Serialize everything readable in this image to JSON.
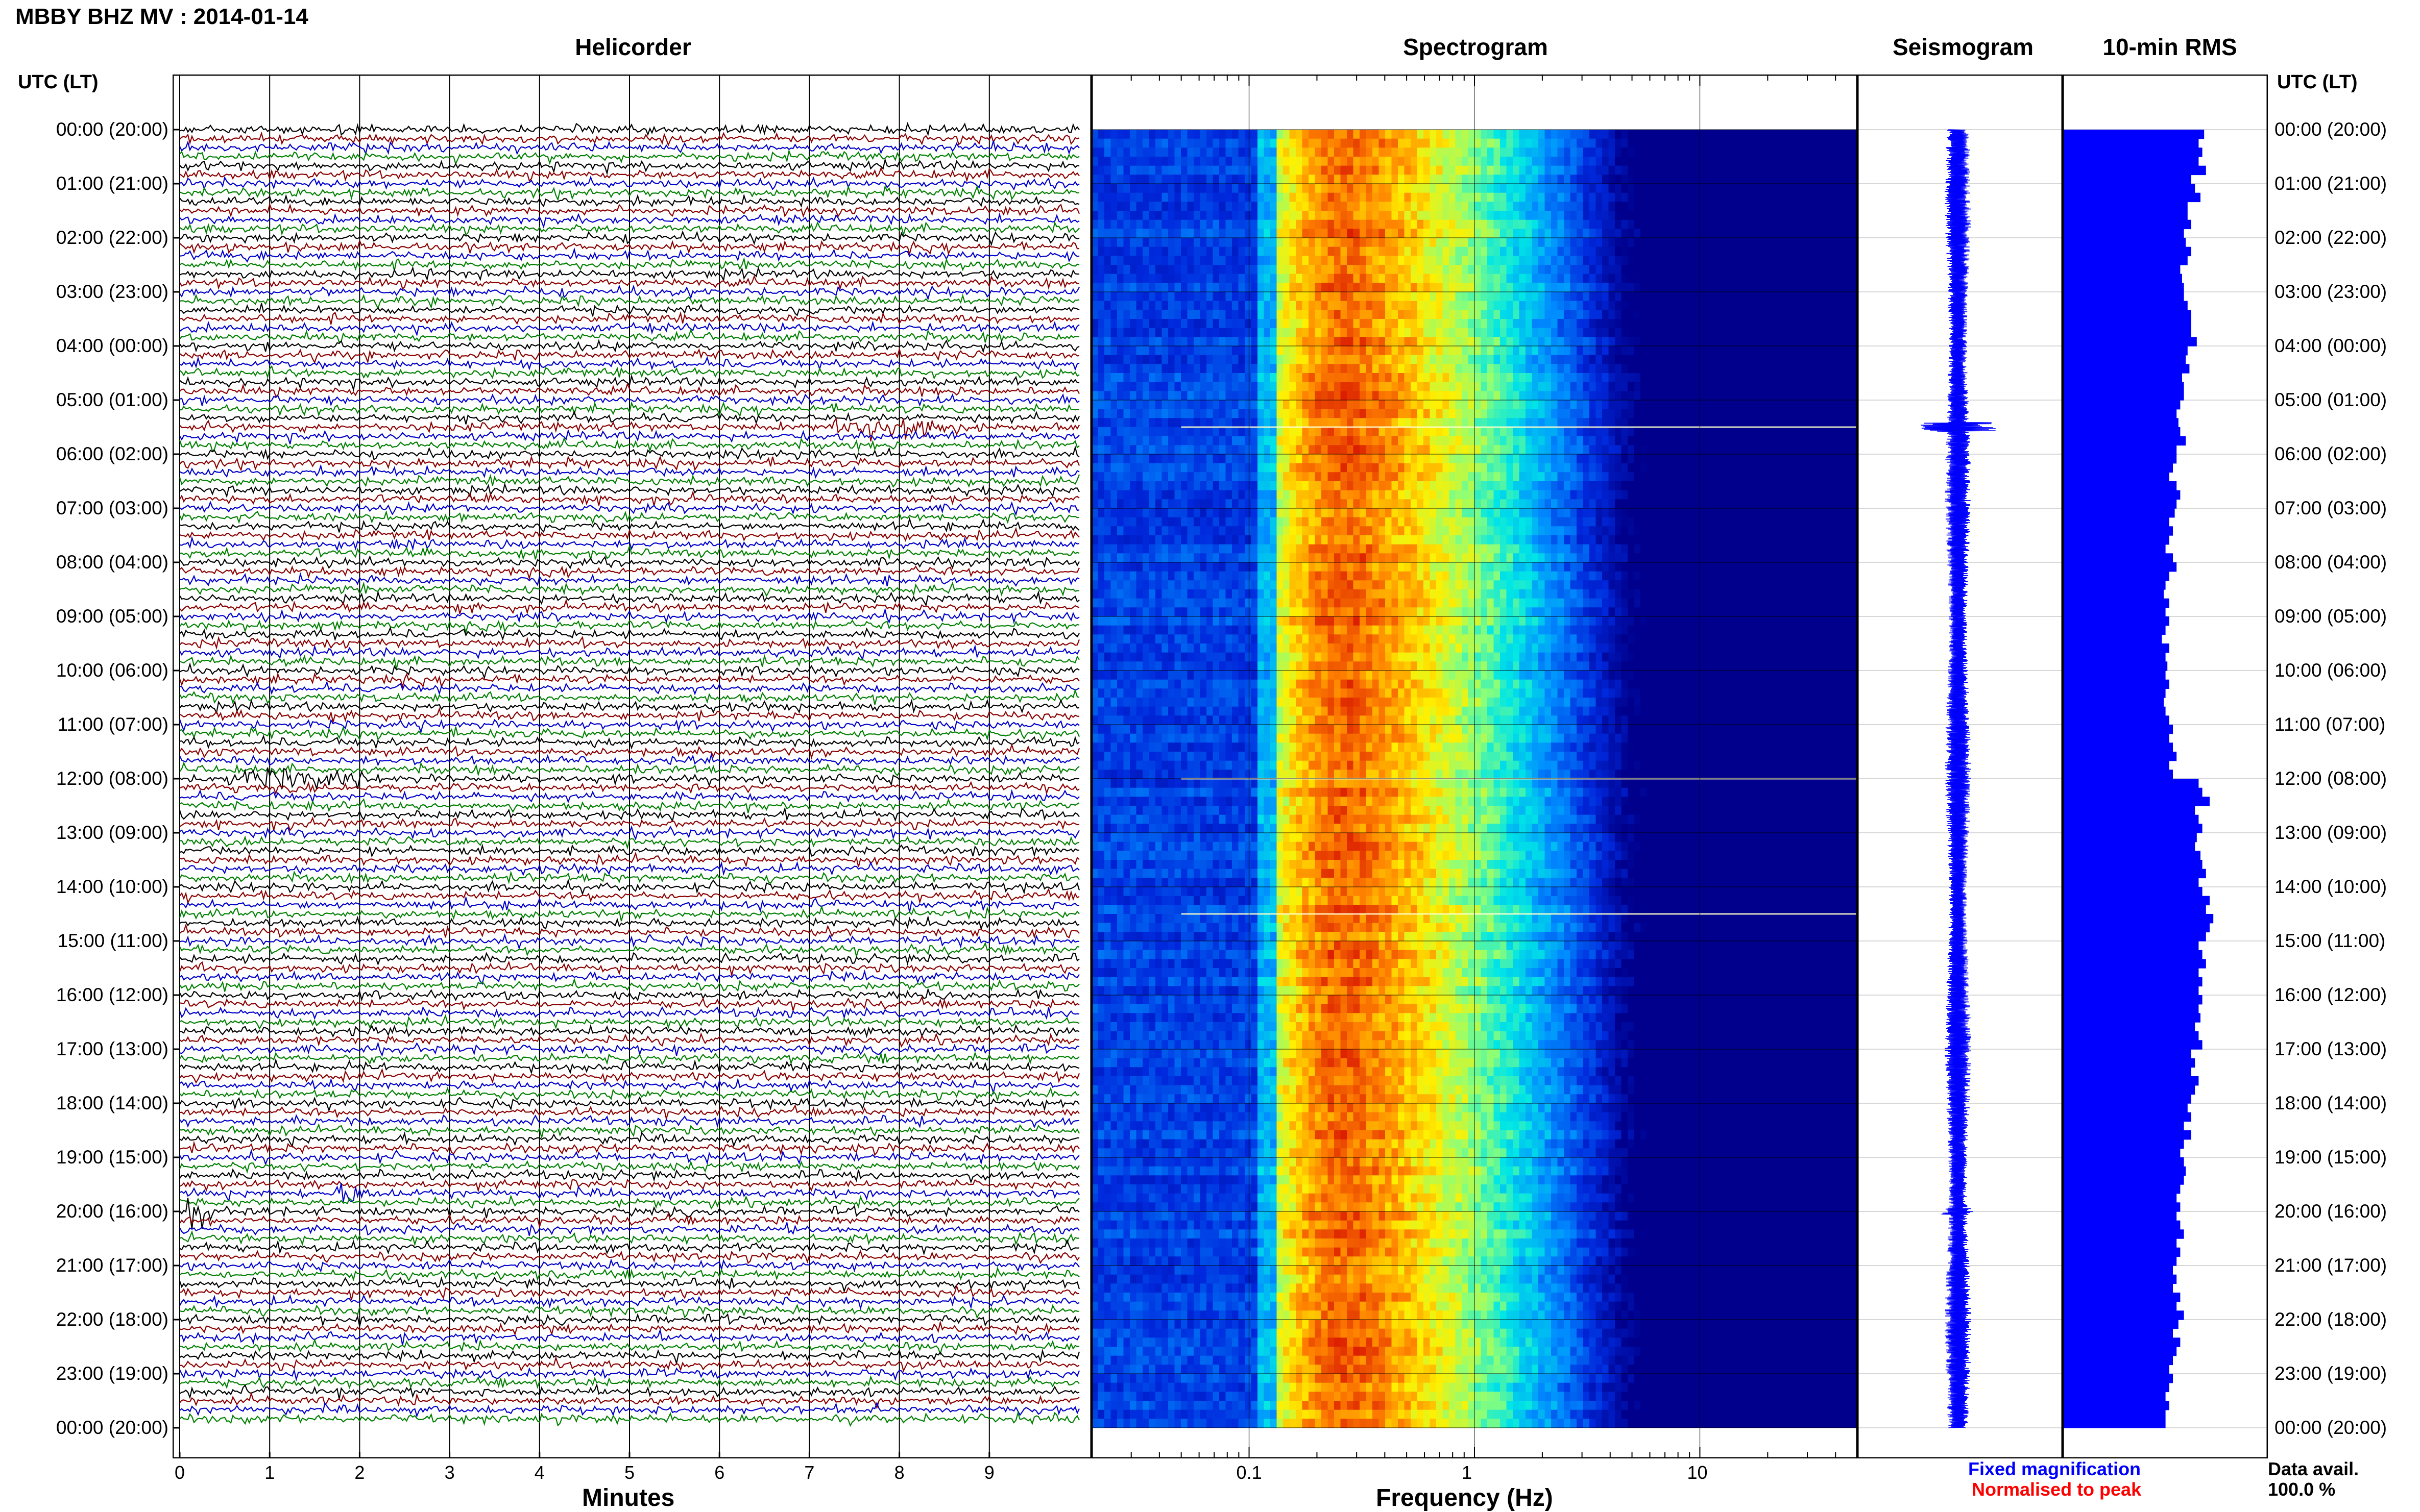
{
  "header": {
    "title": "MBBY BHZ MV : 2014-01-14"
  },
  "panels": {
    "helicorder_title": "Helicorder",
    "spectrogram_title": "Spectrogram",
    "seismogram_title": "Seismogram",
    "rms_title": "10-min RMS"
  },
  "axes": {
    "left_header": "UTC (LT)",
    "right_header": "UTC (LT)",
    "time_labels": [
      "00:00 (20:00)",
      "01:00 (21:00)",
      "02:00 (22:00)",
      "03:00 (23:00)",
      "04:00 (00:00)",
      "05:00 (01:00)",
      "06:00 (02:00)",
      "07:00 (03:00)",
      "08:00 (04:00)",
      "09:00 (05:00)",
      "10:00 (06:00)",
      "11:00 (07:00)",
      "12:00 (08:00)",
      "13:00 (09:00)",
      "14:00 (10:00)",
      "15:00 (11:00)",
      "16:00 (12:00)",
      "17:00 (13:00)",
      "18:00 (14:00)",
      "19:00 (15:00)",
      "20:00 (16:00)",
      "21:00 (17:00)",
      "22:00 (18:00)",
      "23:00 (19:00)",
      "00:00 (20:00)"
    ],
    "minutes_label": "Minutes",
    "minutes_ticks": [
      "0",
      "1",
      "2",
      "3",
      "4",
      "5",
      "6",
      "7",
      "8",
      "9"
    ],
    "frequency_label": "Frequency (Hz)",
    "frequency_ticks": [
      "0.1",
      "1",
      "10"
    ]
  },
  "legend": {
    "fixed": "Fixed magnification",
    "normalised": "Normalised to peak",
    "data_avail_label": "Data avail.",
    "data_avail_value": "100.0 %"
  },
  "colors": {
    "trace_cycle": [
      "#000000",
      "#8b0000",
      "#0000cc",
      "#008000"
    ],
    "fixed_legend": "#0000ff",
    "normalised_legend": "#ff0000",
    "rms_bar": "#0000ff",
    "seismogram": "#0000ff"
  },
  "chart_data": [
    {
      "type": "line",
      "name": "helicorder",
      "x_range_minutes": [
        0,
        10
      ],
      "rows": 144,
      "row_interval_minutes": 10,
      "events": [
        {
          "time": "05:30",
          "minute_start": 7.2,
          "minute_end": 8.8,
          "relative_amplitude": 2.5
        },
        {
          "time": "12:00",
          "minute_start": 0.2,
          "minute_end": 2.2,
          "relative_amplitude": 1.6
        },
        {
          "time": "19:40",
          "minute_start": 1.7,
          "minute_end": 2.2,
          "relative_amplitude": 2.0
        },
        {
          "time": "20:00",
          "minute_start": 0.0,
          "minute_end": 0.4,
          "relative_amplitude": 2.5
        }
      ]
    },
    {
      "type": "heatmap",
      "name": "spectrogram",
      "x_scale": "log",
      "x_range_hz": [
        0.02,
        50
      ],
      "peak_band_hz": [
        0.2,
        0.4
      ],
      "horizontal_lines": [
        "05:30",
        "12:00",
        "14:30"
      ]
    },
    {
      "type": "bar",
      "name": "10-min RMS",
      "interval_minutes": 10,
      "values": [
        0.77,
        0.74,
        0.76,
        0.74,
        0.78,
        0.7,
        0.72,
        0.75,
        0.68,
        0.68,
        0.7,
        0.66,
        0.67,
        0.7,
        0.68,
        0.64,
        0.65,
        0.66,
        0.66,
        0.68,
        0.7,
        0.7,
        0.7,
        0.73,
        0.68,
        0.67,
        0.69,
        0.65,
        0.66,
        0.66,
        0.64,
        0.62,
        0.63,
        0.64,
        0.67,
        0.62,
        0.62,
        0.6,
        0.58,
        0.62,
        0.64,
        0.62,
        0.61,
        0.58,
        0.6,
        0.58,
        0.56,
        0.6,
        0.62,
        0.58,
        0.56,
        0.55,
        0.58,
        0.56,
        0.58,
        0.56,
        0.54,
        0.58,
        0.56,
        0.57,
        0.56,
        0.58,
        0.56,
        0.55,
        0.56,
        0.58,
        0.6,
        0.58,
        0.6,
        0.62,
        0.58,
        0.6,
        0.74,
        0.76,
        0.8,
        0.72,
        0.74,
        0.76,
        0.73,
        0.72,
        0.75,
        0.76,
        0.78,
        0.74,
        0.76,
        0.8,
        0.78,
        0.82,
        0.8,
        0.78,
        0.74,
        0.76,
        0.78,
        0.74,
        0.76,
        0.74,
        0.76,
        0.74,
        0.75,
        0.72,
        0.74,
        0.76,
        0.7,
        0.72,
        0.7,
        0.74,
        0.72,
        0.7,
        0.68,
        0.7,
        0.66,
        0.7,
        0.66,
        0.64,
        0.66,
        0.67,
        0.66,
        0.64,
        0.62,
        0.64,
        0.62,
        0.64,
        0.66,
        0.62,
        0.64,
        0.62,
        0.6,
        0.62,
        0.6,
        0.64,
        0.62,
        0.66,
        0.63,
        0.6,
        0.64,
        0.62,
        0.6,
        0.58,
        0.6,
        0.58,
        0.56,
        0.58,
        0.56,
        0.56
      ]
    }
  ]
}
